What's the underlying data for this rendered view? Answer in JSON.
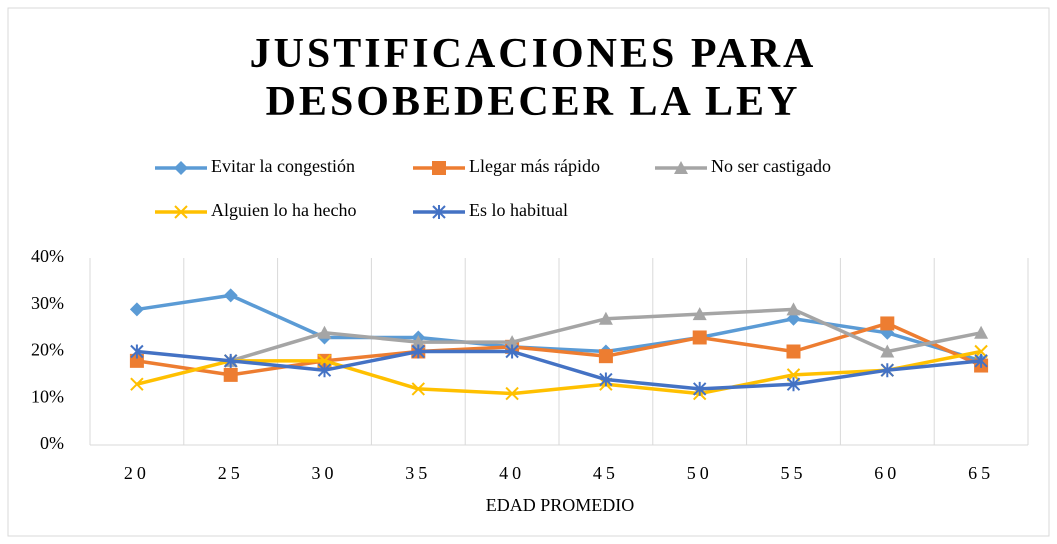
{
  "chart_data": {
    "type": "line",
    "title": "JUSTIFICACIONES PARA DESOBEDECER LA LEY",
    "x_label": "EDAD PROMEDIO",
    "categories": [
      "20",
      "25",
      "30",
      "35",
      "40",
      "45",
      "50",
      "55",
      "60",
      "65"
    ],
    "series": [
      {
        "name": "Evitar la congestión",
        "color": "#5b9bd5",
        "marker": "diamond",
        "values": [
          29,
          32,
          23,
          23,
          21,
          20,
          23,
          27,
          24,
          18
        ]
      },
      {
        "name": "Llegar más rápido",
        "color": "#ed7d31",
        "marker": "square",
        "values": [
          18,
          15,
          18,
          20,
          21,
          19,
          23,
          20,
          26,
          17
        ]
      },
      {
        "name": "No ser castigado",
        "color": "#a5a5a5",
        "marker": "triangle",
        "values": [
          null,
          18,
          24,
          22,
          22,
          27,
          28,
          29,
          20,
          24
        ]
      },
      {
        "name": "Alguien lo ha hecho",
        "color": "#ffc000",
        "marker": "x",
        "values": [
          13,
          18,
          18,
          12,
          11,
          13,
          11,
          15,
          16,
          20
        ]
      },
      {
        "name": "Es lo habitual",
        "color": "#4472c4",
        "marker": "star",
        "values": [
          20,
          18,
          16,
          20,
          20,
          14,
          12,
          13,
          16,
          18
        ]
      }
    ],
    "ylim": [
      0,
      40
    ],
    "yticks": [
      {
        "value": 0,
        "label": "0%"
      },
      {
        "value": 10,
        "label": "10%"
      },
      {
        "value": 20,
        "label": "20%"
      },
      {
        "value": 30,
        "label": "30%"
      },
      {
        "value": 40,
        "label": "40%"
      }
    ],
    "grid": "vertical",
    "legend": "top"
  }
}
